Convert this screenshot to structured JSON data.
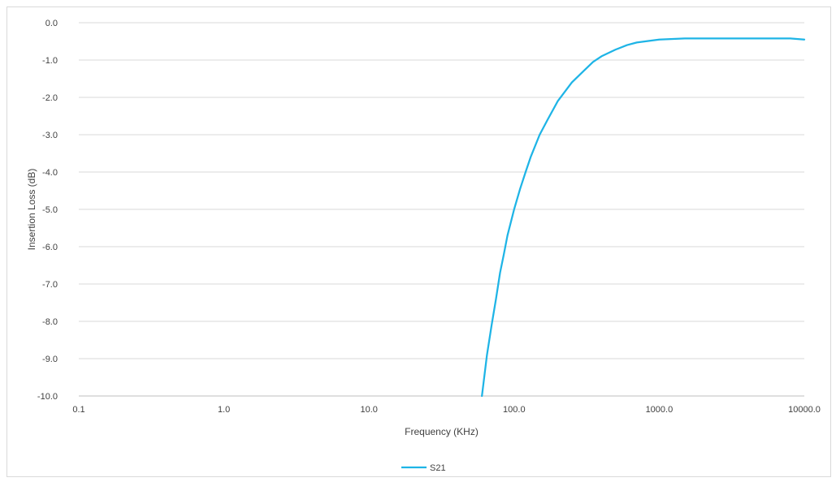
{
  "chart_data": {
    "type": "line",
    "title": "",
    "xlabel": "Frequency (KHz)",
    "ylabel": "Insertion Loss (dB)",
    "x_scale": "log",
    "xlim": [
      0.1,
      10000.0
    ],
    "ylim": [
      -10.0,
      0.0
    ],
    "x_ticks": [
      {
        "value": 0.1,
        "label": "0.1"
      },
      {
        "value": 1.0,
        "label": "1.0"
      },
      {
        "value": 10.0,
        "label": "10.0"
      },
      {
        "value": 100.0,
        "label": "100.0"
      },
      {
        "value": 1000.0,
        "label": "1000.0"
      },
      {
        "value": 10000.0,
        "label": "10000.0"
      }
    ],
    "y_ticks": [
      {
        "value": 0,
        "label": "0.0"
      },
      {
        "value": -1,
        "label": "-1.0"
      },
      {
        "value": -2,
        "label": "-2.0"
      },
      {
        "value": -3,
        "label": "-3.0"
      },
      {
        "value": -4,
        "label": "-4.0"
      },
      {
        "value": -5,
        "label": "-5.0"
      },
      {
        "value": -6,
        "label": "-6.0"
      },
      {
        "value": -7,
        "label": "-7.0"
      },
      {
        "value": -8,
        "label": "-8.0"
      },
      {
        "value": -9,
        "label": "-9.0"
      },
      {
        "value": -10,
        "label": "-10.0"
      }
    ],
    "grid": {
      "horizontal": true,
      "vertical": false
    },
    "legend_position": "bottom",
    "series": [
      {
        "name": "S21",
        "color": "#1eb4e6",
        "x": [
          60,
          65,
          70,
          75,
          80,
          85,
          90,
          100,
          110,
          120,
          130,
          150,
          170,
          200,
          250,
          300,
          350,
          400,
          500,
          600,
          700,
          800,
          1000,
          1500,
          2000,
          3000,
          5000,
          8000,
          10000
        ],
        "y": [
          -10.0,
          -8.9,
          -8.1,
          -7.4,
          -6.7,
          -6.2,
          -5.7,
          -5.0,
          -4.45,
          -4.0,
          -3.6,
          -3.0,
          -2.6,
          -2.1,
          -1.6,
          -1.3,
          -1.05,
          -0.9,
          -0.72,
          -0.6,
          -0.53,
          -0.5,
          -0.45,
          -0.42,
          -0.42,
          -0.42,
          -0.42,
          -0.42,
          -0.45
        ]
      }
    ]
  }
}
